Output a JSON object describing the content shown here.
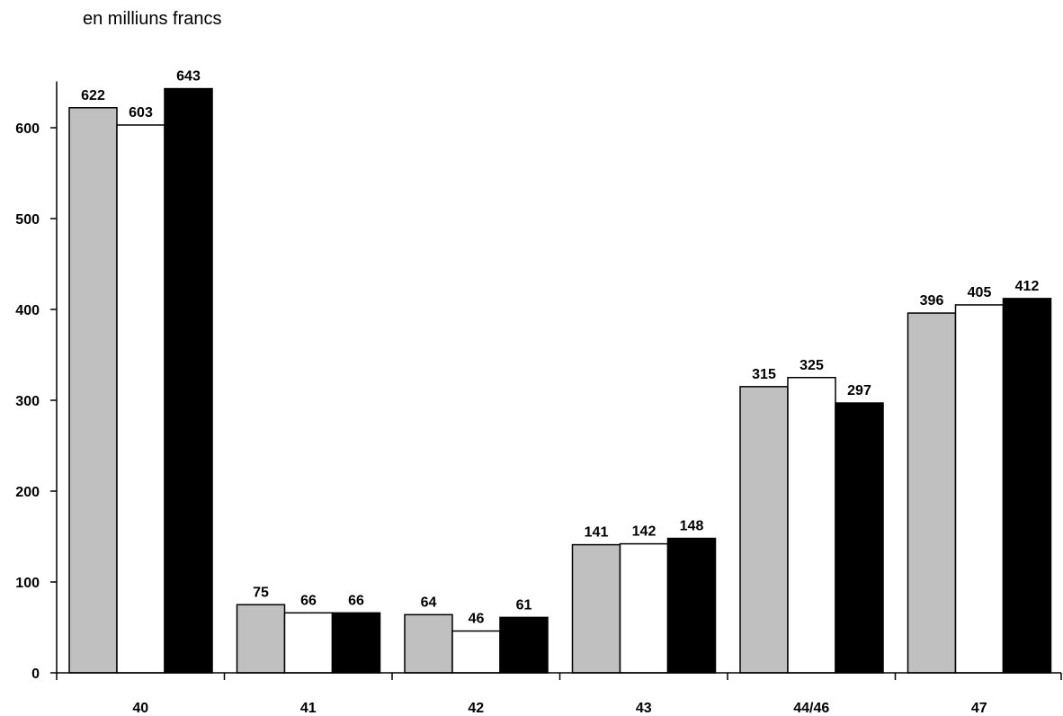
{
  "chart_data": {
    "type": "bar",
    "title": "",
    "subtitle": "en milliuns francs",
    "xlabel": "",
    "ylabel": "",
    "categories": [
      "40",
      "41",
      "42",
      "43",
      "44/46",
      "47"
    ],
    "series": [
      {
        "values": [
          622,
          75,
          64,
          141,
          315,
          396
        ],
        "color": "#c0c0c0"
      },
      {
        "values": [
          603,
          66,
          46,
          142,
          325,
          405
        ],
        "color": "#ffffff"
      },
      {
        "values": [
          643,
          66,
          61,
          148,
          297,
          412
        ],
        "color": "#000000"
      }
    ],
    "yticks": [
      0,
      100,
      200,
      300,
      400,
      500,
      600
    ],
    "ylim": [
      0,
      650
    ],
    "grid": false,
    "legend": "none",
    "data_labels": true
  }
}
